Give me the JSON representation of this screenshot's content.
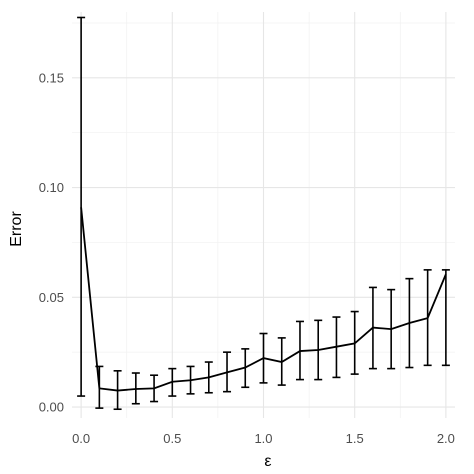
{
  "chart_data": {
    "type": "line",
    "title": "",
    "xlabel": "ε",
    "ylabel": "Error",
    "xlim": [
      -0.05,
      2.05
    ],
    "ylim": [
      -0.005,
      0.18
    ],
    "x_ticks": [
      0.0,
      0.5,
      1.0,
      1.5,
      2.0
    ],
    "x_tick_labels": [
      "0.0",
      "0.5",
      "1.0",
      "1.5",
      "2.0"
    ],
    "y_ticks": [
      0.0,
      0.05,
      0.1,
      0.15
    ],
    "y_tick_labels": [
      "0.00",
      "0.05",
      "0.10",
      "0.15"
    ],
    "grid": true,
    "series": [
      {
        "x": [
          0.0,
          0.1,
          0.2,
          0.3,
          0.4,
          0.5,
          0.6,
          0.7,
          0.8,
          0.9,
          1.0,
          1.1,
          1.2,
          1.3,
          1.4,
          1.5,
          1.6,
          1.7,
          1.8,
          1.9,
          2.0
        ],
        "y": [
          0.091,
          0.0085,
          0.0075,
          0.0082,
          0.0085,
          0.0115,
          0.0122,
          0.0135,
          0.0158,
          0.018,
          0.0223,
          0.0205,
          0.0255,
          0.026,
          0.0275,
          0.029,
          0.0362,
          0.0355,
          0.0383,
          0.0405,
          0.0605
        ],
        "y_lower": [
          0.005,
          -0.0005,
          -0.001,
          0.0015,
          0.0025,
          0.005,
          0.006,
          0.0065,
          0.007,
          0.009,
          0.011,
          0.01,
          0.0125,
          0.0125,
          0.0135,
          0.015,
          0.0175,
          0.0175,
          0.018,
          0.019,
          0.019
        ],
        "y_upper": [
          0.1775,
          0.0185,
          0.0165,
          0.0155,
          0.0145,
          0.0175,
          0.0185,
          0.0205,
          0.025,
          0.0265,
          0.0335,
          0.0315,
          0.039,
          0.0395,
          0.041,
          0.0435,
          0.0545,
          0.0535,
          0.0585,
          0.0625,
          0.0625
        ]
      }
    ]
  }
}
